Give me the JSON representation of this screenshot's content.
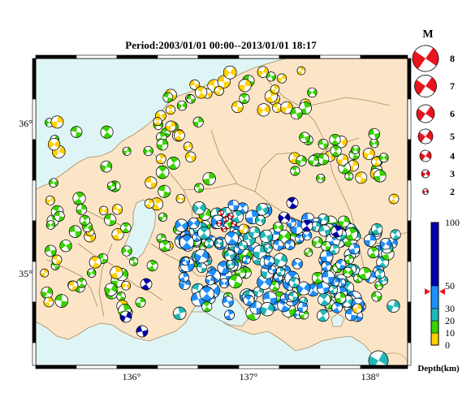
{
  "title": "Period:2003/01/01 00:00--2013/01/01 18:17",
  "map": {
    "lon_labels": [
      "136°",
      "137°",
      "138°"
    ],
    "lat_labels": [
      "36°",
      "35°"
    ],
    "sea_color": "#dff5f5",
    "land_color": "#fbe5c6",
    "lake_color": "#dff5f5",
    "boundary_color": "#a88a66"
  },
  "magnitude_legend": {
    "heading": "M",
    "values": [
      "8",
      "7",
      "6",
      "5",
      "4",
      "3",
      "2"
    ],
    "color": "#e8141e"
  },
  "depth_scale": {
    "ticks": [
      "100",
      "50",
      "30",
      "20",
      "10",
      "0"
    ],
    "label": "Depth(km)",
    "bands": [
      {
        "from": 0,
        "to": 10,
        "color": "#ffd000"
      },
      {
        "from": 10,
        "to": 20,
        "color": "#39d400"
      },
      {
        "from": 20,
        "to": 30,
        "color": "#22b8b8"
      },
      {
        "from": 30,
        "to": 50,
        "color": "#1e90ff"
      },
      {
        "from": 50,
        "to": 100,
        "color": "#0000a8"
      }
    ],
    "marker_color": "#e8141e"
  },
  "mechanism_colors": {
    "shallow": "#ffd000",
    "green": "#39d400",
    "teal": "#22b8b8",
    "blue": "#1e90ff",
    "deep": "#0000a8",
    "red": "#e8141e"
  }
}
